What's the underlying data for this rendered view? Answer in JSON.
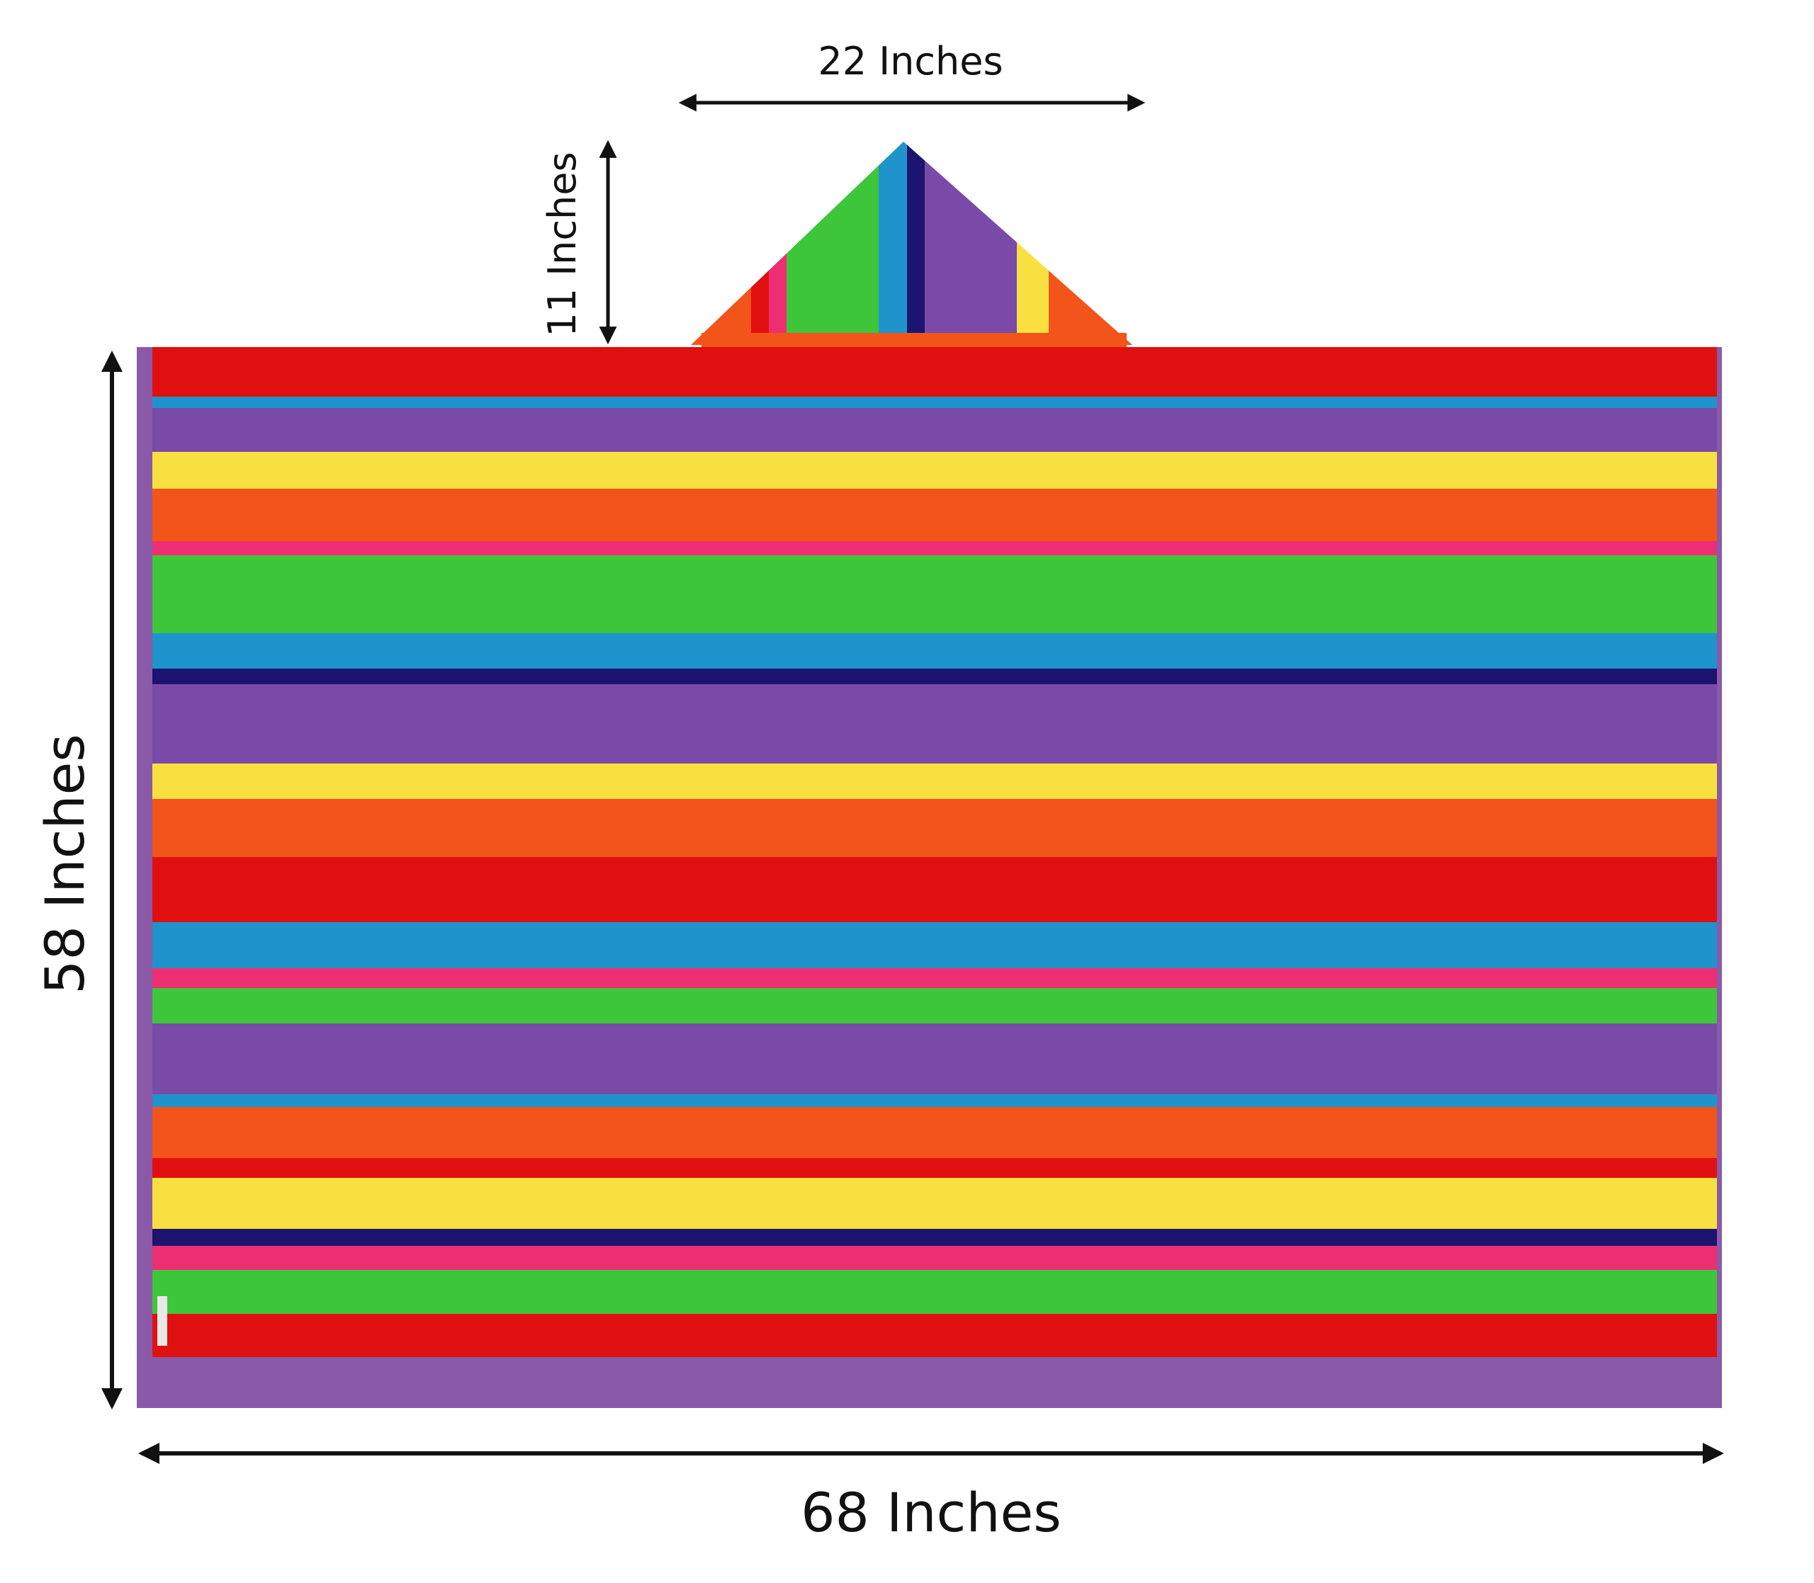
{
  "dimensions": {
    "hood_width": "22 Inches",
    "hood_height": "11 Inches",
    "towel_height": "58 Inches",
    "towel_width": "68 Inches"
  },
  "colors": {
    "red": "#e01010",
    "orange": "#f2541a",
    "yellow": "#f8e040",
    "green": "#3ec63a",
    "blue": "#1f94cc",
    "purple": "#7a4aa8",
    "navy": "#1c1470",
    "pink": "#ee2e72",
    "edge": "#8a5aa8",
    "arrow": "#111111"
  },
  "towel_stripes": [
    "red",
    "blue",
    "purple",
    "yellow",
    "orange",
    "pink",
    "green",
    "blue",
    "navy",
    "purple",
    "yellow",
    "orange",
    "red",
    "blue",
    "pink",
    "green",
    "purple",
    "blue",
    "orange",
    "red",
    "yellow",
    "navy",
    "pink",
    "green",
    "red"
  ],
  "hood_stripes": [
    "orange",
    "red",
    "pink",
    "green",
    "blue",
    "navy",
    "purple",
    "yellow",
    "orange"
  ]
}
